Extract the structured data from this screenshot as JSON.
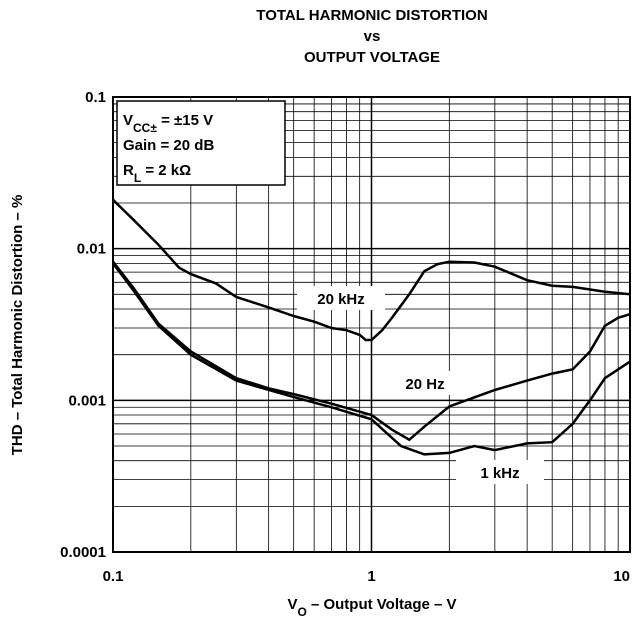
{
  "chart_data": {
    "type": "line",
    "title": [
      "TOTAL HARMONIC DISTORTION",
      "vs",
      "OUTPUT VOLTAGE"
    ],
    "x_label": [
      {
        "text": "V"
      },
      {
        "text": "O",
        "sub": true
      },
      {
        "text": " – Output Voltage – V"
      }
    ],
    "y_label": "THD – Total Harmonic Distortion – %",
    "annotation": [
      [
        {
          "text": "V"
        },
        {
          "text": "CC±",
          "sub": true
        },
        {
          "text": " = ±15 V"
        }
      ],
      [
        {
          "text": "Gain = 20 dB"
        }
      ],
      [
        {
          "text": "R"
        },
        {
          "text": "L",
          "sub": true
        },
        {
          "text": " = 2 kΩ"
        }
      ]
    ],
    "log_x": true,
    "log_y": true,
    "grid": "major-minor",
    "xlim": [
      0.1,
      10
    ],
    "xticks": [
      0.1,
      1,
      10
    ],
    "ylim": [
      0.0001,
      0.1
    ],
    "yticks": [
      0.1,
      0.01,
      0.001,
      0.0001
    ],
    "series": [
      {
        "name": "20 kHz",
        "color": "#000000",
        "x": [
          0.1,
          0.12,
          0.15,
          0.18,
          0.2,
          0.25,
          0.3,
          0.4,
          0.5,
          0.6,
          0.7,
          0.8,
          0.9,
          0.95,
          1.0,
          1.1,
          1.2,
          1.4,
          1.6,
          1.8,
          2,
          2.5,
          3,
          4,
          5,
          6,
          8,
          10
        ],
        "values": [
          0.021,
          0.0155,
          0.0106,
          0.0075,
          0.0068,
          0.0059,
          0.0048,
          0.0041,
          0.0036,
          0.0033,
          0.003,
          0.0029,
          0.0027,
          0.0025,
          0.0025,
          0.0029,
          0.0035,
          0.005,
          0.0071,
          0.0079,
          0.0082,
          0.0081,
          0.0076,
          0.0062,
          0.0057,
          0.0056,
          0.0052,
          0.005
        ]
      },
      {
        "name": "20 Hz",
        "color": "#000000",
        "x": [
          0.1,
          0.12,
          0.15,
          0.2,
          0.3,
          0.4,
          0.5,
          0.7,
          1.0,
          1.2,
          1.4,
          1.6,
          2,
          3,
          4,
          5,
          6,
          7,
          8,
          9,
          10
        ],
        "values": [
          0.0082,
          0.0055,
          0.0032,
          0.0021,
          0.0014,
          0.0012,
          0.0011,
          0.00095,
          0.0008,
          0.00064,
          0.00055,
          0.00067,
          0.00091,
          0.00117,
          0.00135,
          0.0015,
          0.0016,
          0.0021,
          0.0031,
          0.0035,
          0.0037
        ]
      },
      {
        "name": "1 kHz",
        "color": "#000000",
        "x": [
          0.1,
          0.12,
          0.15,
          0.2,
          0.3,
          0.5,
          0.7,
          1.0,
          1.3,
          1.6,
          2,
          2.5,
          3,
          4,
          5,
          6,
          7,
          8,
          10
        ],
        "values": [
          0.008,
          0.0053,
          0.0031,
          0.002,
          0.00135,
          0.00105,
          0.0009,
          0.00075,
          0.0005,
          0.00044,
          0.00045,
          0.0005,
          0.00047,
          0.00052,
          0.00053,
          0.0007,
          0.001,
          0.0014,
          0.0018
        ]
      }
    ]
  }
}
